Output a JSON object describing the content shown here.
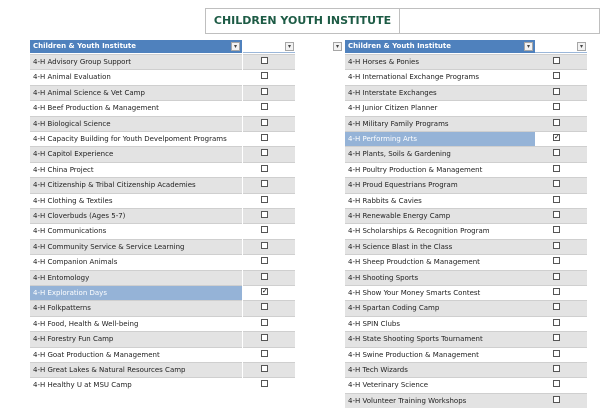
{
  "header": {
    "title": "CHILDREN YOUTH INSTITUTE"
  },
  "tables": [
    {
      "column": "Children & Youth Institute",
      "rows": [
        {
          "label": "4-H Advisory Group Support",
          "checked": false
        },
        {
          "label": "4-H Animal Evaluation",
          "checked": false
        },
        {
          "label": "4-H Animal Science & Vet Camp",
          "checked": false
        },
        {
          "label": "4-H Beef Production & Management",
          "checked": false
        },
        {
          "label": "4-H Biological Science",
          "checked": false
        },
        {
          "label": "4-H Capacity Building for Youth Develpoment Programs",
          "checked": false
        },
        {
          "label": "4-H Capitol Experience",
          "checked": false
        },
        {
          "label": "4-H China Project",
          "checked": false
        },
        {
          "label": "4-H Citizenship & Tribal Citizenship Academies",
          "checked": false
        },
        {
          "label": "4-H Clothing & Textiles",
          "checked": false
        },
        {
          "label": "4-H Cloverbuds (Ages 5-7)",
          "checked": false
        },
        {
          "label": "4-H Communications",
          "checked": false
        },
        {
          "label": "4-H Community Service & Service Learning",
          "checked": false
        },
        {
          "label": "4-H Companion Animals",
          "checked": false
        },
        {
          "label": "4-H Entomology",
          "checked": false
        },
        {
          "label": "4-H Exploration Days",
          "checked": true
        },
        {
          "label": "4-H Folkpatterns",
          "checked": false
        },
        {
          "label": "4-H Food, Health & Well-being",
          "checked": false
        },
        {
          "label": "4-H Forestry Fun Camp",
          "checked": false
        },
        {
          "label": "4-H Goat Production & Management",
          "checked": false
        },
        {
          "label": "4-H Great Lakes & Natural Resources Camp",
          "checked": false
        },
        {
          "label": "4-H Healthy U at MSU Camp",
          "checked": false
        }
      ]
    },
    {
      "column": "Children & Youth Institute",
      "rows": [
        {
          "label": "4-H Horses & Ponies",
          "checked": false
        },
        {
          "label": "4-H International Exchange Programs",
          "checked": false
        },
        {
          "label": "4-H Interstate Exchanges",
          "checked": false
        },
        {
          "label": "4-H Junior Citizen Planner",
          "checked": false
        },
        {
          "label": "4-H Military Family Programs",
          "checked": false
        },
        {
          "label": "4-H Performing Arts",
          "checked": true
        },
        {
          "label": "4-H Plants, Soils & Gardening",
          "checked": false
        },
        {
          "label": "4-H Poultry Production & Management",
          "checked": false
        },
        {
          "label": "4-H Proud Equestrians Program",
          "checked": false
        },
        {
          "label": "4-H Rabbits & Cavies",
          "checked": false
        },
        {
          "label": "4-H Renewable Energy Camp",
          "checked": false
        },
        {
          "label": "4-H Scholarships & Recognition Program",
          "checked": false
        },
        {
          "label": "4-H Science Blast in the Class",
          "checked": false
        },
        {
          "label": "4-H Sheep Proudction & Management",
          "checked": false
        },
        {
          "label": "4-H Shooting Sports",
          "checked": false
        },
        {
          "label": "4-H Show Your Money Smarts Contest",
          "checked": false
        },
        {
          "label": "4-H Spartan Coding Camp",
          "checked": false
        },
        {
          "label": "4-H SPIN Clubs",
          "checked": false
        },
        {
          "label": "4-H State Shooting Sports Tournament",
          "checked": false
        },
        {
          "label": "4-H Swine Production & Management",
          "checked": false
        },
        {
          "label": "4-H Tech Wizards",
          "checked": false
        },
        {
          "label": "4-H Veterinary Science",
          "checked": false
        },
        {
          "label": "4-H Volunteer Training Workshops",
          "checked": false
        }
      ]
    }
  ]
}
